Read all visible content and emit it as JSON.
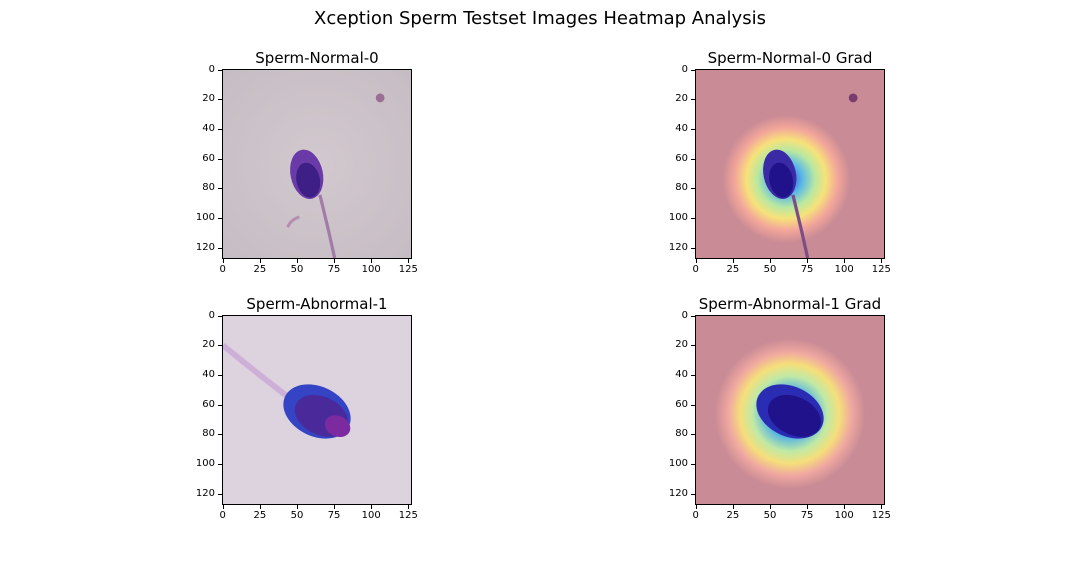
{
  "figure": {
    "title": "Xception Sperm Testset Images Heatmap Analysis"
  },
  "panels": [
    {
      "id": "p1",
      "title": "Sperm-Normal-0",
      "kind": "normal",
      "heatmap": false
    },
    {
      "id": "p2",
      "title": "Sperm-Normal-0 Grad",
      "kind": "normal",
      "heatmap": true
    },
    {
      "id": "p3",
      "title": "Sperm-Abnormal-1",
      "kind": "abnormal",
      "heatmap": false
    },
    {
      "id": "p4",
      "title": "Sperm-Abnormal-1 Grad",
      "kind": "abnormal",
      "heatmap": true
    }
  ],
  "axes": {
    "xticks": [
      "0",
      "25",
      "50",
      "75",
      "100",
      "125"
    ],
    "yticks": [
      "0",
      "20",
      "40",
      "60",
      "80",
      "100",
      "120"
    ],
    "xlim": [
      0,
      128
    ],
    "ylim": [
      0,
      128
    ]
  },
  "colors": {
    "normal_bg": "#cbc2c8",
    "abnormal_bg": "#ddd3df",
    "head_purple": "#5a2a9a",
    "head_blue": "#3b3fb5",
    "grad_tint": "#c98b95"
  }
}
